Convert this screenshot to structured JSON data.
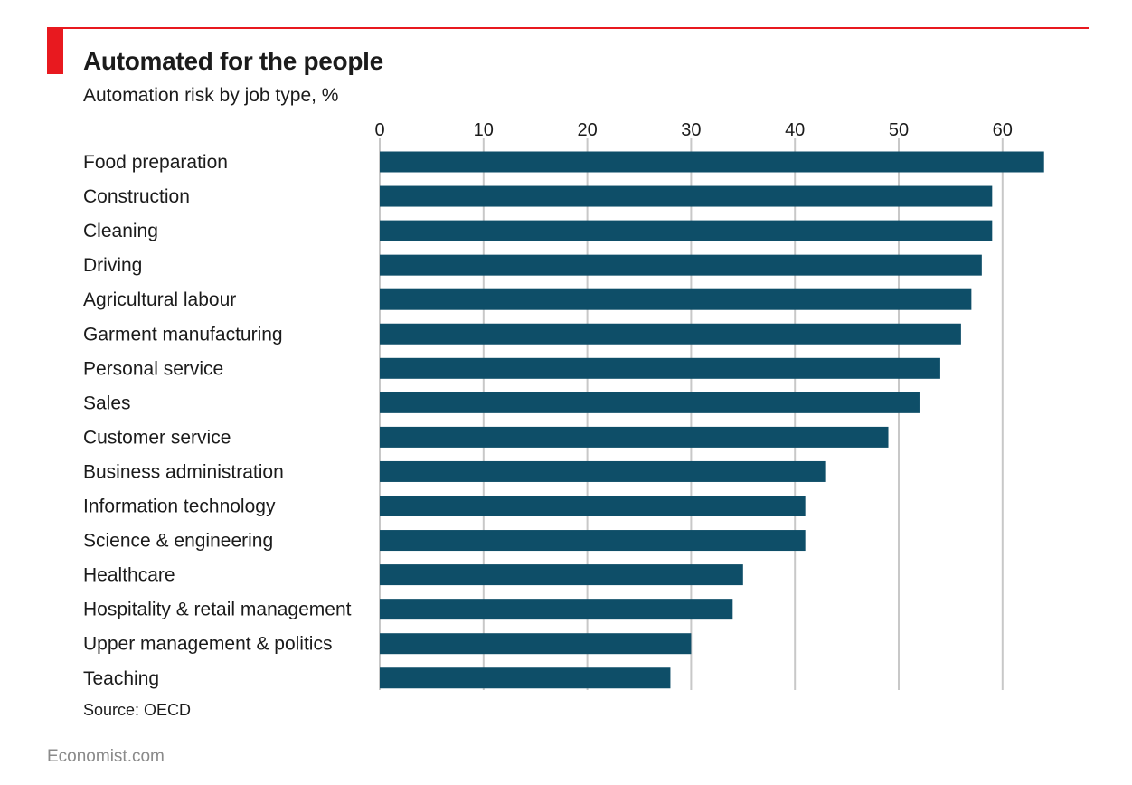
{
  "header": {
    "title": "Automated for the people",
    "subtitle": "Automation risk by job type, %"
  },
  "footer": {
    "source": "Source: OECD",
    "brand": "Economist.com"
  },
  "colors": {
    "bar": "#0e4e68",
    "accent": "#e8191f",
    "grid": "#c8c8c8"
  },
  "chart_data": {
    "type": "bar",
    "orientation": "horizontal",
    "categories": [
      "Food preparation",
      "Construction",
      "Cleaning",
      "Driving",
      "Agricultural labour",
      "Garment manufacturing",
      "Personal service",
      "Sales",
      "Customer service",
      "Business administration",
      "Information technology",
      "Science & engineering",
      "Healthcare",
      "Hospitality & retail management",
      "Upper management & politics",
      "Teaching"
    ],
    "values": [
      64,
      59,
      59,
      58,
      57,
      56,
      54,
      52,
      49,
      43,
      41,
      41,
      35,
      34,
      30,
      28
    ],
    "xlim": [
      0,
      65
    ],
    "ticks": [
      0,
      10,
      20,
      30,
      40,
      50,
      60
    ],
    "grid": true,
    "axis_position": "top"
  }
}
